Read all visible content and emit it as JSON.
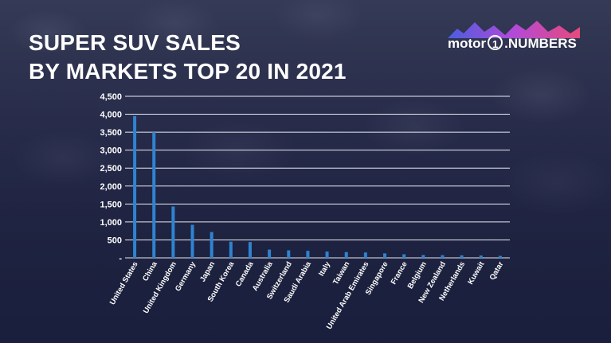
{
  "title": {
    "line1": "SUPER SUV SALES",
    "line2": "BY MARKETS TOP 20 IN 2021"
  },
  "logo": {
    "brand": "motor",
    "one": "1",
    "suffix": ".NUMBERS",
    "accent_colors": [
      "#4a5ee0",
      "#b24ad8",
      "#e84a7a"
    ]
  },
  "colors": {
    "bar": "#2f83d1",
    "grid": "#e9ebf3",
    "text": "#ffffff"
  },
  "chart_data": {
    "type": "bar",
    "title": "SUPER SUV SALES BY MARKETS TOP 20 IN 2021",
    "xlabel": "",
    "ylabel": "",
    "ylim": [
      0,
      4500
    ],
    "yticks": [
      0,
      500,
      1000,
      1500,
      2000,
      2500,
      3000,
      3500,
      4000,
      4500
    ],
    "ytick_labels": [
      "-",
      "500",
      "1,000",
      "1,500",
      "2,000",
      "2,500",
      "3,000",
      "3,500",
      "4,000",
      "4,500"
    ],
    "grid": true,
    "legend": "none",
    "categories": [
      "United States",
      "China",
      "United Kingdom",
      "Germany",
      "Japan",
      "South Korea",
      "Canada",
      "Australia",
      "Switzerland",
      "Saudi Arabia",
      "Italy",
      "Taiwan",
      "United Arab Emirates",
      "Singapore",
      "France",
      "Belgium",
      "New Zealand",
      "Netherlands",
      "Kuwait",
      "Qatar"
    ],
    "values": [
      3950,
      3500,
      1430,
      920,
      720,
      450,
      440,
      230,
      210,
      195,
      175,
      160,
      150,
      125,
      100,
      80,
      75,
      70,
      65,
      55
    ]
  }
}
